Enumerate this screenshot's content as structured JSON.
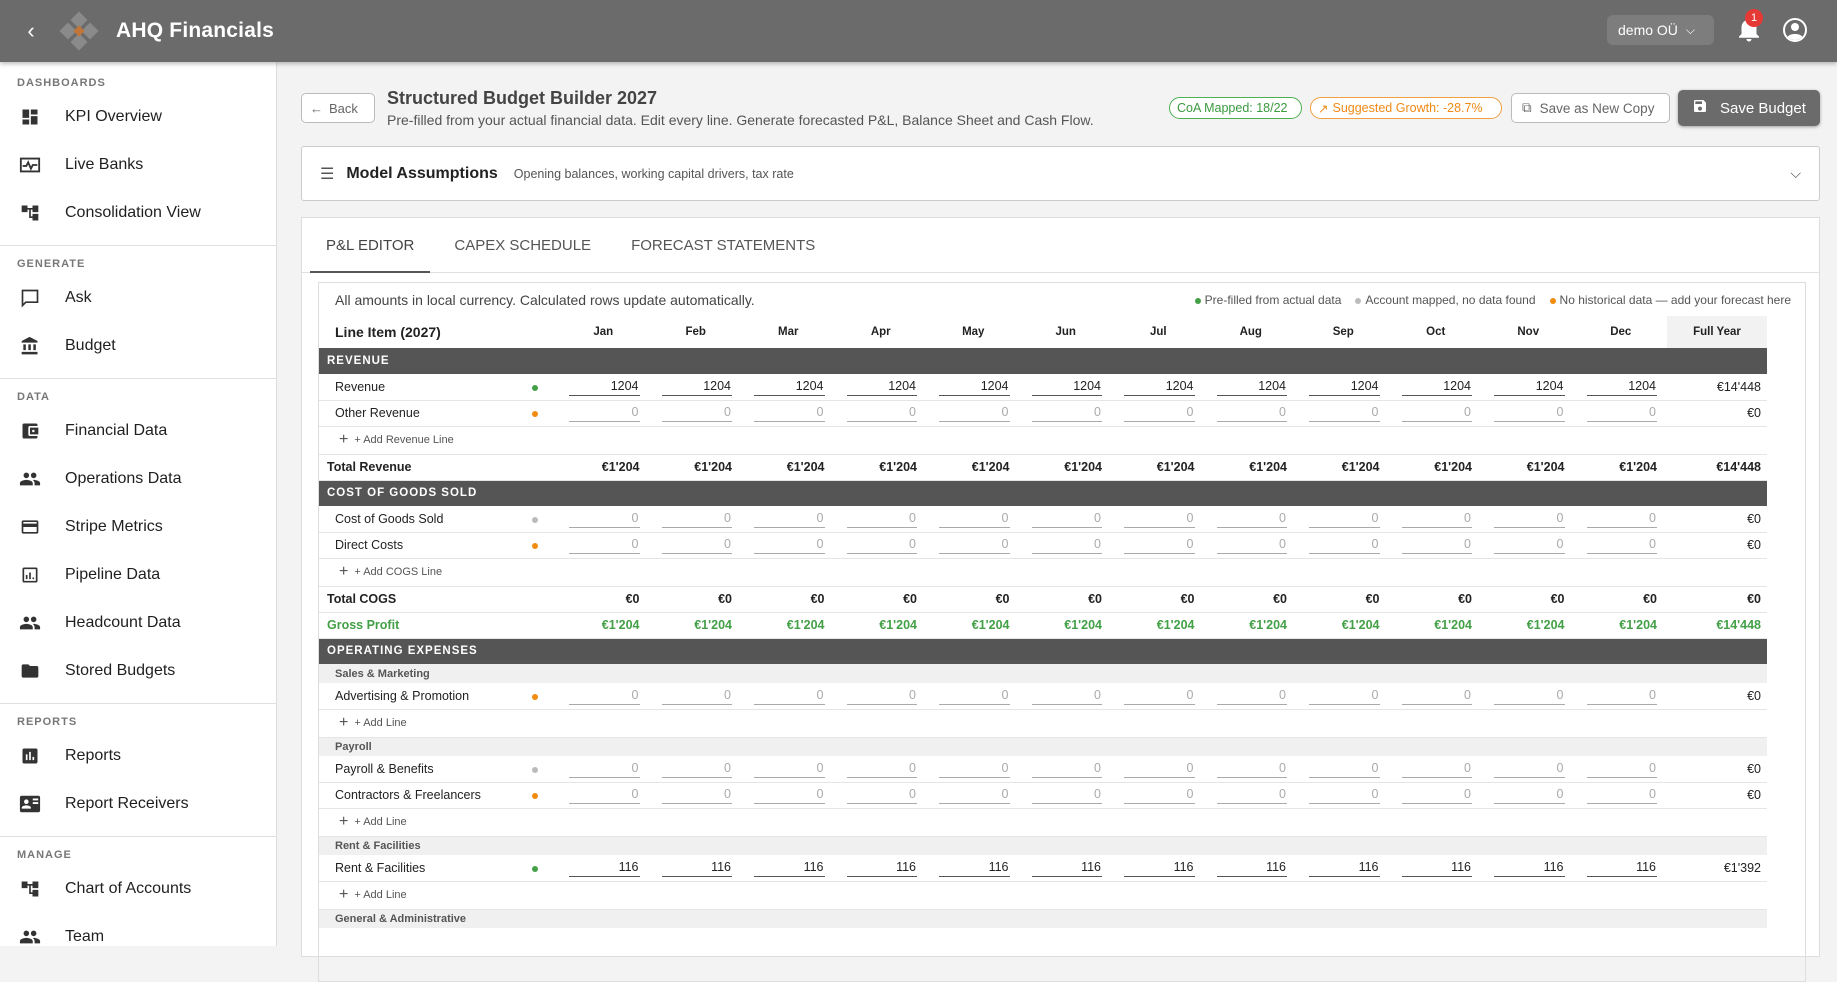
{
  "topbar": {
    "app_name": "AHQ Financials",
    "org": "demo OÜ",
    "notification_count": "1"
  },
  "sidebar": {
    "sections": [
      {
        "title": "DASHBOARDS",
        "items": [
          {
            "label": "KPI Overview",
            "icon": "dashboard-icon"
          },
          {
            "label": "Live Banks",
            "icon": "pulse-icon"
          },
          {
            "label": "Consolidation View",
            "icon": "tree-icon"
          }
        ]
      },
      {
        "title": "GENERATE",
        "items": [
          {
            "label": "Ask",
            "icon": "chat-icon"
          },
          {
            "label": "Budget",
            "icon": "bank-icon"
          }
        ]
      },
      {
        "title": "DATA",
        "items": [
          {
            "label": "Financial Data",
            "icon": "wallet-icon"
          },
          {
            "label": "Operations Data",
            "icon": "people-icon"
          },
          {
            "label": "Stripe Metrics",
            "icon": "card-icon"
          },
          {
            "label": "Pipeline Data",
            "icon": "report-icon"
          },
          {
            "label": "Headcount Data",
            "icon": "people-icon"
          },
          {
            "label": "Stored Budgets",
            "icon": "folder-icon"
          }
        ]
      },
      {
        "title": "REPORTS",
        "items": [
          {
            "label": "Reports",
            "icon": "chart-icon"
          },
          {
            "label": "Report Receivers",
            "icon": "contact-icon"
          }
        ]
      },
      {
        "title": "MANAGE",
        "items": [
          {
            "label": "Chart of Accounts",
            "icon": "tree-icon"
          },
          {
            "label": "Team",
            "icon": "people-icon"
          }
        ]
      }
    ]
  },
  "header": {
    "back_label": "Back",
    "title": "Structured Budget Builder 2027",
    "subtitle": "Pre-filled from your actual financial data. Edit every line. Generate forecasted P&L, Balance Sheet and Cash Flow.",
    "coa_chip": "CoA Mapped: 18/22",
    "growth_chip": "Suggested Growth: -28.7%",
    "copy_label": "Save as New Copy",
    "save_label": "Save Budget"
  },
  "assumptions": {
    "title": "Model Assumptions",
    "subtitle": "Opening balances, working capital drivers, tax rate"
  },
  "tabs": [
    "P&L EDITOR",
    "CAPEX SCHEDULE",
    "FORECAST STATEMENTS"
  ],
  "editor": {
    "note": "All amounts in local currency. Calculated rows update automatically.",
    "legend": {
      "prefilled": "Pre-filled from actual data",
      "mapped": "Account mapped, no data found",
      "nohist": "No historical data — add your forecast here"
    },
    "col_header": "Line Item (2027)",
    "months": [
      "Jan",
      "Feb",
      "Mar",
      "Apr",
      "May",
      "Jun",
      "Jul",
      "Aug",
      "Sep",
      "Oct",
      "Nov",
      "Dec"
    ],
    "full_year": "Full Year",
    "rows": [
      {
        "type": "section",
        "label": "REVENUE"
      },
      {
        "type": "line",
        "label": "Revenue",
        "dot": "g",
        "value": "1204",
        "fy": "€14'448"
      },
      {
        "type": "line",
        "label": "Other Revenue",
        "dot": "o",
        "value": "0",
        "fy": "€0"
      },
      {
        "type": "add",
        "label": "+ Add Revenue Line"
      },
      {
        "type": "total",
        "label": "Total Revenue",
        "value": "€1'204",
        "fy": "€14'448"
      },
      {
        "type": "section",
        "label": "COST OF GOODS SOLD"
      },
      {
        "type": "line",
        "label": "Cost of Goods Sold",
        "dot": "gr",
        "value": "0",
        "fy": "€0"
      },
      {
        "type": "line",
        "label": "Direct Costs",
        "dot": "o",
        "value": "0",
        "fy": "€0"
      },
      {
        "type": "add",
        "label": "+ Add COGS Line"
      },
      {
        "type": "total",
        "label": "Total COGS",
        "value": "€0",
        "fy": "€0"
      },
      {
        "type": "gp",
        "label": "Gross Profit",
        "value": "€1'204",
        "fy": "€14'448"
      },
      {
        "type": "section",
        "label": "OPERATING EXPENSES"
      },
      {
        "type": "sub",
        "label": "Sales & Marketing"
      },
      {
        "type": "line",
        "label": "Advertising & Promotion",
        "dot": "o",
        "value": "0",
        "fy": "€0"
      },
      {
        "type": "add",
        "label": "+ Add Line"
      },
      {
        "type": "sub",
        "label": "Payroll"
      },
      {
        "type": "line",
        "label": "Payroll & Benefits",
        "dot": "gr",
        "value": "0",
        "fy": "€0"
      },
      {
        "type": "line",
        "label": "Contractors & Freelancers",
        "dot": "o",
        "value": "0",
        "fy": "€0"
      },
      {
        "type": "add",
        "label": "+ Add Line"
      },
      {
        "type": "sub",
        "label": "Rent & Facilities"
      },
      {
        "type": "line",
        "label": "Rent & Facilities",
        "dot": "g",
        "value": "116",
        "fy": "€1'392"
      },
      {
        "type": "add",
        "label": "+ Add Line"
      },
      {
        "type": "sub",
        "label": "General & Administrative"
      }
    ]
  }
}
